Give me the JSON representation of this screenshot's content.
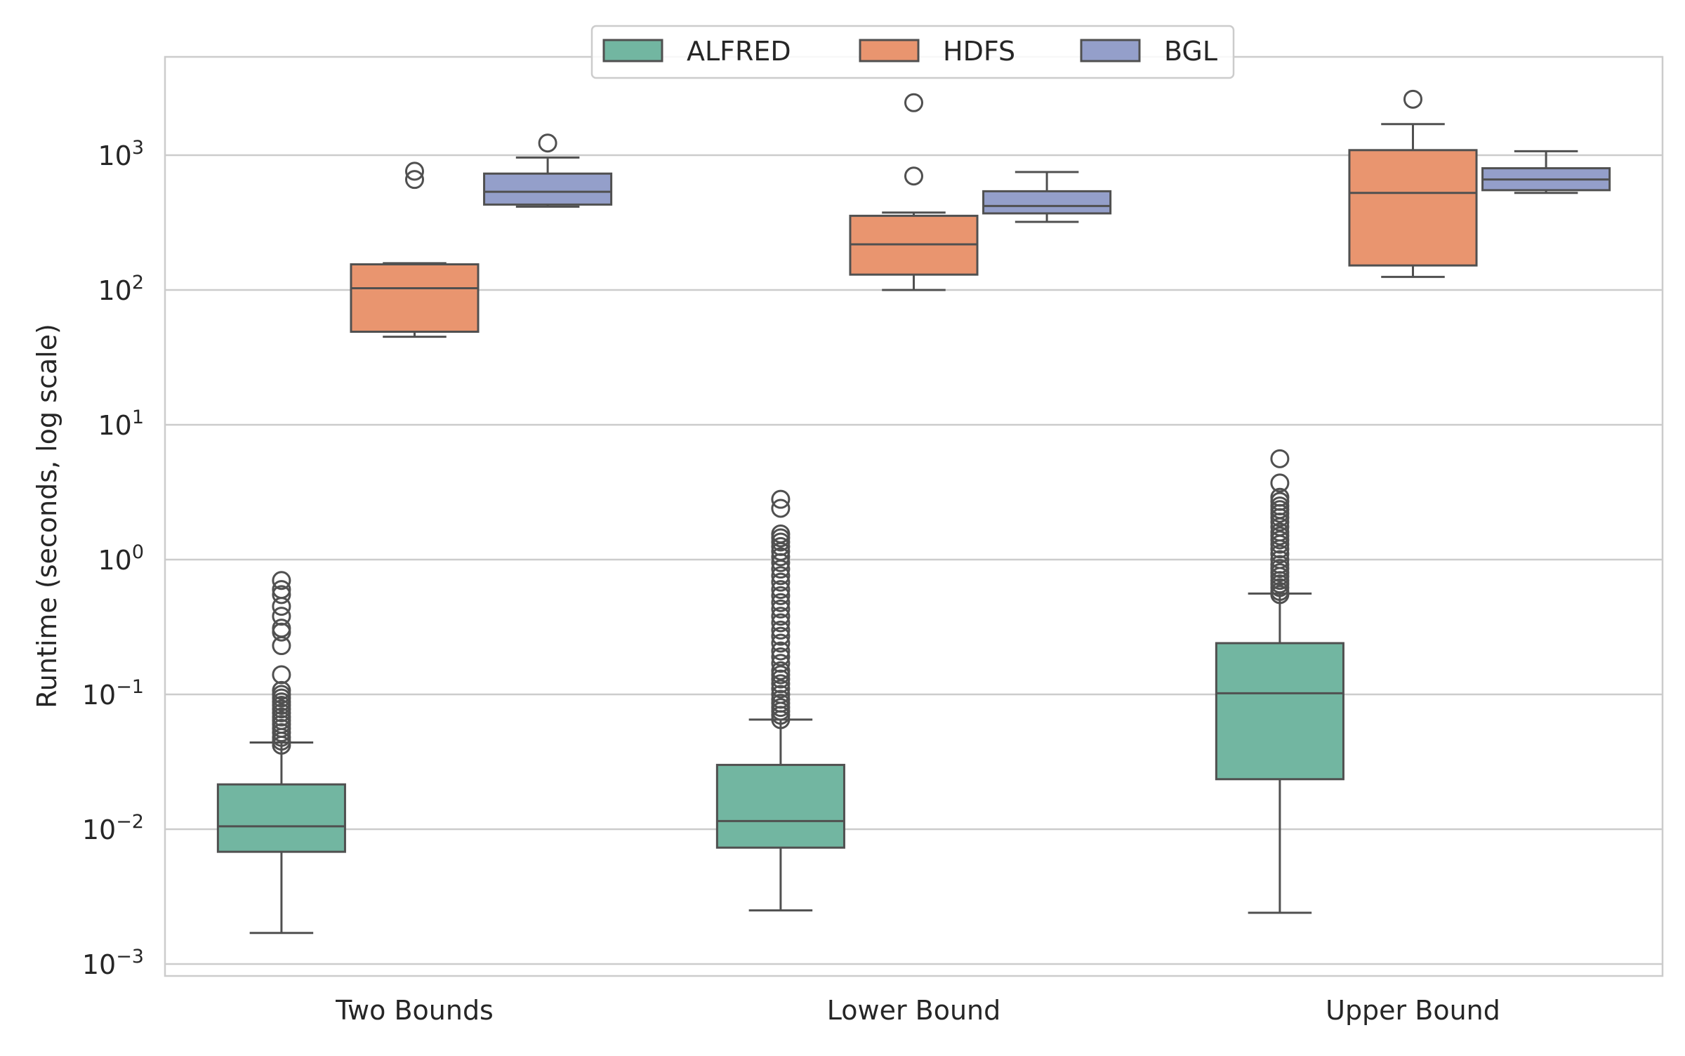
{
  "chart_data": {
    "type": "box",
    "title": "",
    "xlabel": "",
    "ylabel": "Runtime (seconds, log scale)",
    "yscale": "log",
    "ylim": [
      0.00085,
      5000
    ],
    "yticks": [
      {
        "value": 0.001,
        "base": "10",
        "exp": "−3"
      },
      {
        "value": 0.01,
        "base": "10",
        "exp": "−2"
      },
      {
        "value": 0.1,
        "base": "10",
        "exp": "−1"
      },
      {
        "value": 1,
        "base": "10",
        "exp": "0"
      },
      {
        "value": 10,
        "base": "10",
        "exp": "1"
      },
      {
        "value": 100,
        "base": "10",
        "exp": "2"
      },
      {
        "value": 1000,
        "base": "10",
        "exp": "3"
      }
    ],
    "grid": "horizontal",
    "legend_position": "top-center",
    "categories": [
      "Two Bounds",
      "Lower Bound",
      "Upper Bound"
    ],
    "series": [
      {
        "name": "ALFRED",
        "color": "#72b6a1",
        "boxes": [
          {
            "whisker_low": 0.0017,
            "q1": 0.0068,
            "median": 0.0105,
            "q3": 0.0215,
            "whisker_high": 0.044,
            "outliers": [
              0.042,
              0.045,
              0.048,
              0.052,
              0.056,
              0.06,
              0.064,
              0.068,
              0.073,
              0.078,
              0.083,
              0.088,
              0.094,
              0.1,
              0.107,
              0.14,
              0.23,
              0.29,
              0.31,
              0.38,
              0.45,
              0.55,
              0.6,
              0.7
            ]
          },
          {
            "whisker_low": 0.0025,
            "q1": 0.0073,
            "median": 0.0115,
            "q3": 0.03,
            "whisker_high": 0.065,
            "outliers": [
              0.065,
              0.07,
              0.075,
              0.08,
              0.086,
              0.092,
              0.1,
              0.11,
              0.12,
              0.13,
              0.14,
              0.15,
              0.17,
              0.19,
              0.21,
              0.24,
              0.27,
              0.3,
              0.34,
              0.38,
              0.43,
              0.48,
              0.54,
              0.6,
              0.68,
              0.76,
              0.85,
              0.95,
              1.05,
              1.15,
              1.25,
              1.35,
              1.45,
              1.55,
              2.4,
              2.8
            ]
          },
          {
            "whisker_low": 0.0024,
            "q1": 0.0235,
            "median": 0.102,
            "q3": 0.24,
            "whisker_high": 0.56,
            "outliers": [
              0.55,
              0.58,
              0.62,
              0.66,
              0.7,
              0.75,
              0.8,
              0.86,
              0.92,
              1.0,
              1.1,
              1.2,
              1.3,
              1.4,
              1.5,
              1.6,
              1.75,
              1.9,
              2.05,
              2.2,
              2.35,
              2.5,
              2.7,
              2.9,
              3.7,
              5.6
            ]
          }
        ]
      },
      {
        "name": "HDFS",
        "color": "#e9956f",
        "boxes": [
          {
            "whisker_low": 45,
            "q1": 49,
            "median": 103,
            "q3": 155,
            "whisker_high": 158,
            "outliers": [
              660,
              760
            ]
          },
          {
            "whisker_low": 100,
            "q1": 130,
            "median": 218,
            "q3": 355,
            "whisker_high": 375,
            "outliers": [
              700,
              2450
            ]
          },
          {
            "whisker_low": 125,
            "q1": 152,
            "median": 525,
            "q3": 1090,
            "whisker_high": 1700,
            "outliers": [
              2600
            ]
          }
        ]
      },
      {
        "name": "BGL",
        "color": "#949fca",
        "boxes": [
          {
            "whisker_low": 415,
            "q1": 430,
            "median": 535,
            "q3": 730,
            "whisker_high": 960,
            "outliers": [
              1230
            ]
          },
          {
            "whisker_low": 320,
            "q1": 370,
            "median": 420,
            "q3": 540,
            "whisker_high": 750,
            "outliers": []
          },
          {
            "whisker_low": 525,
            "q1": 550,
            "median": 660,
            "q3": 800,
            "whisker_high": 1070,
            "outliers": []
          }
        ]
      }
    ]
  }
}
